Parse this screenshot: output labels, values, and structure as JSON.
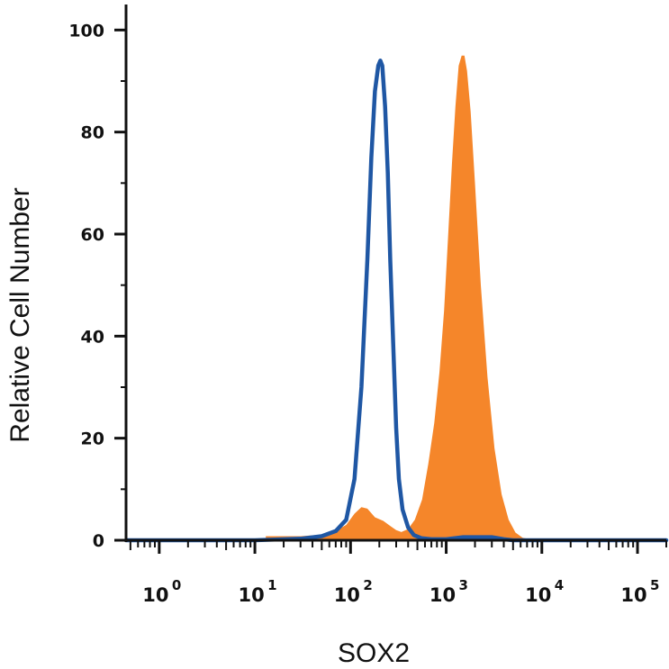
{
  "chart_data": {
    "type": "area",
    "title": "",
    "xlabel": "SOX2",
    "ylabel": "Relative Cell Number",
    "x_scale": "log",
    "xlim": [
      0.45,
      200000
    ],
    "ylim": [
      0,
      105
    ],
    "y_ticks": [
      {
        "value": 0,
        "label": "0"
      },
      {
        "value": 20,
        "label": "20"
      },
      {
        "value": 40,
        "label": "40"
      },
      {
        "value": 60,
        "label": "60"
      },
      {
        "value": 80,
        "label": "80"
      },
      {
        "value": 100,
        "label": "100"
      }
    ],
    "x_ticks": [
      {
        "value": 1,
        "base": "10",
        "exp": "0"
      },
      {
        "value": 10,
        "base": "10",
        "exp": "1"
      },
      {
        "value": 100,
        "base": "10",
        "exp": "2"
      },
      {
        "value": 1000,
        "base": "10",
        "exp": "3"
      },
      {
        "value": 10000,
        "base": "10",
        "exp": "4"
      },
      {
        "value": 100000,
        "base": "10",
        "exp": "5"
      }
    ],
    "grid": false,
    "legend": "none",
    "series": [
      {
        "style": "filled",
        "color": "#f5862a",
        "x": [
          13,
          30,
          60,
          90,
          110,
          130,
          150,
          180,
          220,
          260,
          300,
          340,
          400,
          470,
          560,
          650,
          750,
          850,
          950,
          1050,
          1150,
          1250,
          1350,
          1450,
          1550,
          1650,
          1800,
          2000,
          2300,
          2700,
          3200,
          3800,
          4500,
          5300,
          6300,
          7500,
          9000
        ],
        "y": [
          0.8,
          0.8,
          1.2,
          3.0,
          5.2,
          6.5,
          6.2,
          4.5,
          3.8,
          2.8,
          2.0,
          1.6,
          2.2,
          4.0,
          8.0,
          15.0,
          23.0,
          33.0,
          45.0,
          60.0,
          74.0,
          85.0,
          93.0,
          95.0,
          95.0,
          92.0,
          84.0,
          70.0,
          50.0,
          32.0,
          18.0,
          9.0,
          4.0,
          1.5,
          0.5,
          0.2,
          0.0
        ]
      },
      {
        "style": "outline",
        "color": "#1f57a4",
        "x": [
          0.45,
          10,
          30,
          50,
          70,
          90,
          110,
          130,
          150,
          165,
          180,
          195,
          205,
          215,
          230,
          245,
          260,
          280,
          300,
          320,
          350,
          400,
          460,
          550,
          700,
          1000,
          1500,
          2000,
          3000,
          4000,
          5000,
          10000,
          200000
        ],
        "y": [
          0,
          0,
          0.3,
          0.8,
          1.8,
          4.0,
          12.0,
          30.0,
          55.0,
          75.0,
          88.0,
          93.0,
          94.0,
          93.0,
          85.0,
          72.0,
          55.0,
          38.0,
          22.0,
          12.0,
          6.0,
          2.5,
          1.0,
          0.4,
          0.2,
          0.2,
          0.6,
          0.6,
          0.6,
          0.2,
          0.0,
          0.0,
          0.0
        ]
      }
    ]
  }
}
